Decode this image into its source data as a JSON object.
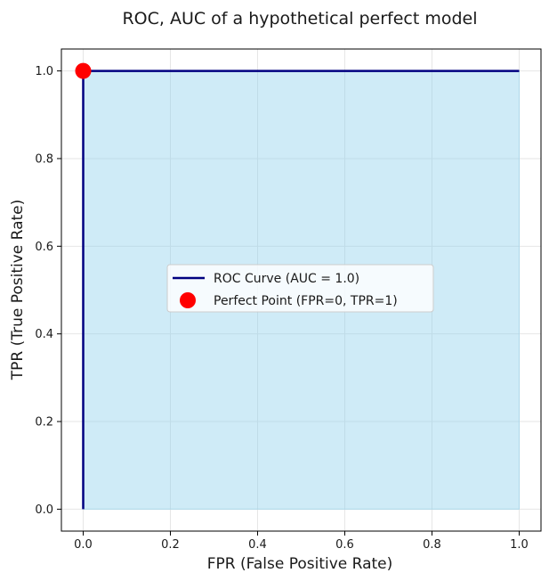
{
  "chart_data": {
    "type": "line",
    "title": "ROC, AUC of a hypothetical perfect model",
    "xlabel": "FPR (False Positive Rate)",
    "ylabel": "TPR (True Positive Rate)",
    "xlim": [
      -0.05,
      1.05
    ],
    "ylim": [
      -0.05,
      1.05
    ],
    "xticks": [
      0.0,
      0.2,
      0.4,
      0.6,
      0.8,
      1.0
    ],
    "yticks": [
      0.0,
      0.2,
      0.4,
      0.6,
      0.8,
      1.0
    ],
    "xtick_labels": [
      "0.0",
      "0.2",
      "0.4",
      "0.6",
      "0.8",
      "1.0"
    ],
    "ytick_labels": [
      "0.0",
      "0.2",
      "0.4",
      "0.6",
      "0.8",
      "1.0"
    ],
    "grid": true,
    "legend_position": "center",
    "series": [
      {
        "name": "ROC Curve (AUC = 1.0)",
        "kind": "line",
        "color": "#000080",
        "x": [
          0,
          0,
          1
        ],
        "y": [
          0,
          1,
          1
        ],
        "fill_under": true,
        "fill_color": "#87CEEB"
      },
      {
        "name": "Perfect Point (FPR=0, TPR=1)",
        "kind": "scatter",
        "color": "#ff0000",
        "x": [
          0
        ],
        "y": [
          1
        ]
      }
    ]
  }
}
